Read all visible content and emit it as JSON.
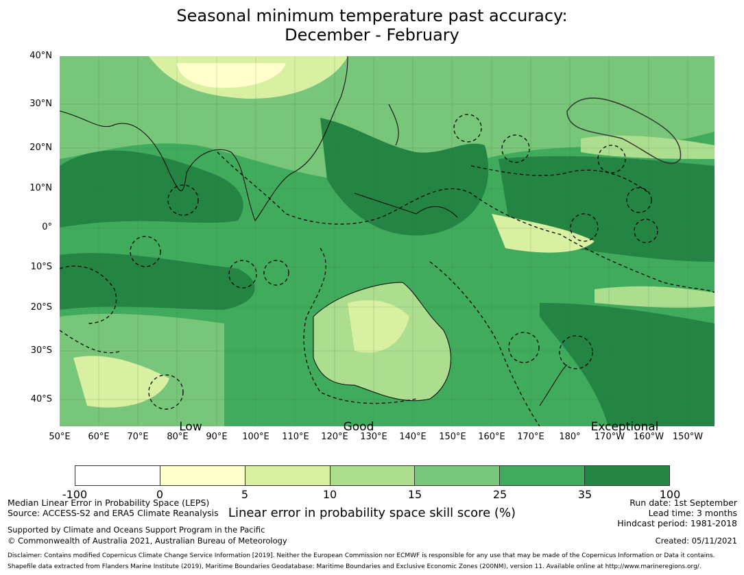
{
  "title_line1": "Seasonal minimum temperature past accuracy:",
  "title_line2": "December - February",
  "lat_labels": [
    "40°N",
    "30°N",
    "20°N",
    "10°N",
    "0°",
    "10°S",
    "20°S",
    "30°S",
    "40°S"
  ],
  "lon_labels": [
    "50°E",
    "60°E",
    "70°E",
    "80°E",
    "90°E",
    "100°E",
    "110°E",
    "120°E",
    "130°E",
    "140°E",
    "150°E",
    "160°E",
    "170°E",
    "180°",
    "170°W",
    "160°W",
    "150°W"
  ],
  "category_labels": {
    "low": "Low",
    "good": "Good",
    "exceptional": "Exceptional"
  },
  "colorbar": {
    "ticks": [
      "-100",
      "0",
      "5",
      "10",
      "15",
      "25",
      "35",
      "100"
    ],
    "colors": [
      "#ffffff",
      "#ffffcc",
      "#d9f0a3",
      "#addd8e",
      "#78c679",
      "#41ab5d",
      "#238443"
    ],
    "label": "Linear error in probability space skill score (%)"
  },
  "notes_left": {
    "line1": "Median Linear Error in Probability Space (LEPS)",
    "line2": "Source: ACCESS-S2 and ERA5 Climate Reanalysis",
    "line3": "Supported by Climate and Oceans Support Program in the Pacific",
    "line4": "© Commonwealth of Australia 2021, Australian Bureau of Meteorology"
  },
  "notes_right": {
    "run_date": "Run date: 1st September",
    "lead_time": "Lead time: 3 months",
    "hindcast": "Hindcast period: 1981-2018",
    "created": "Created: 05/11/2021"
  },
  "disclaimer": "Disclaimer: Contains modified Copernicus Climate Change Service Information [2019]. Neither the European Commission nor ECMWF is responsible for any use that may be made of the Copernicus Information or Data it contains.",
  "shapefile_note": "Shapefile data extracted from Flanders Marine Institute (2019), Maritime Boundaries Geodatabase: Maritime Boundaries and Exclusive Economic Zones (200NM), version 11. Available online at http://www.marineregions.org/."
}
